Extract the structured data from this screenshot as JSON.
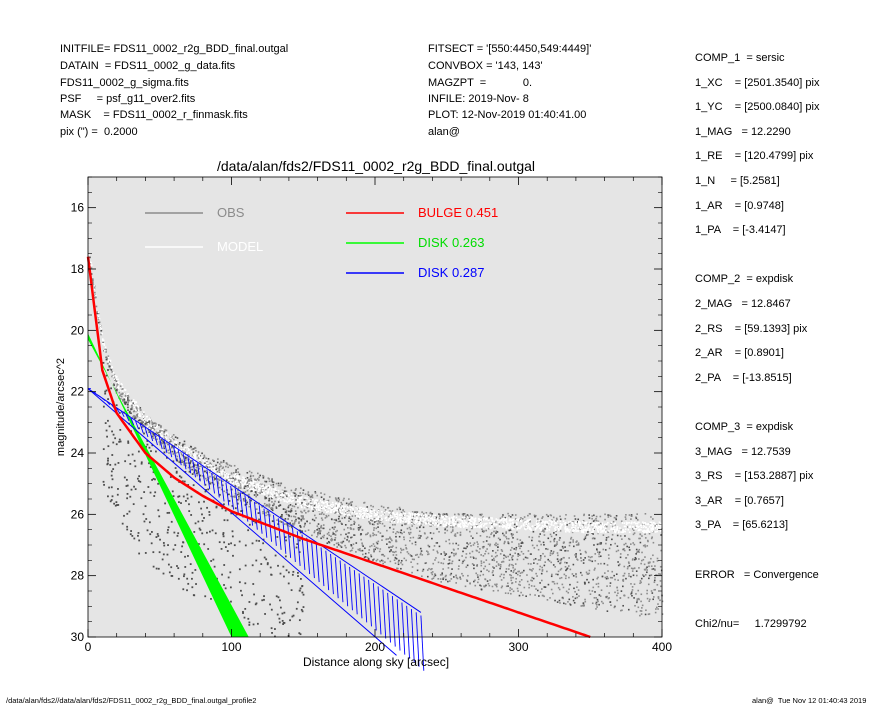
{
  "header_left": [
    "INITFILE= FDS11_0002_r2g_BDD_final.outgal",
    "DATAIN  = FDS11_0002_g_data.fits",
    "FDS11_0002_g_sigma.fits",
    "PSF     = psf_g11_over2.fits",
    "MASK    = FDS11_0002_r_finmask.fits",
    "pix (\") =  0.2000"
  ],
  "header_mid": [
    "FITSECT = '[550:4450,549:4449]'",
    "CONVBOX = '143, 143'",
    "MAGZPT  =            0.",
    "INFILE: 2019-Nov- 8",
    "PLOT: 12-Nov-2019 01:40:41.00",
    "alan@"
  ],
  "params": [
    "COMP_1  = sersic",
    "1_XC    = [2501.3540] pix",
    "1_YC    = [2500.0840] pix",
    "1_MAG   = 12.2290",
    "1_RE    = [120.4799] pix",
    "1_N     = [5.2581]",
    "1_AR    = [0.9748]",
    "1_PA    = [-3.4147]",
    "",
    "COMP_2  = expdisk",
    "2_MAG   = 12.8467",
    "2_RS    = [59.1393] pix",
    "2_AR    = [0.8901]",
    "2_PA    = [-13.8515]",
    "",
    "COMP_3  = expdisk",
    "3_MAG   = 12.7539",
    "3_RS    = [153.2887] pix",
    "3_AR    = [0.7657]",
    "3_PA    = [65.6213]",
    "",
    "ERROR   = Convergence",
    "",
    "Chi2/nu=     1.7299792"
  ],
  "footer_left": "/data/alan/fds2//data/alan/fds2/FDS11_0002_r2g_BDD_final.outgal_profile2",
  "footer_right": "alan@  Tue Nov 12 01:40:43 2019",
  "chart_data": {
    "type": "scatter",
    "title": "/data/alan/fds2/FDS11_0002_r2g_BDD_final.outgal",
    "xlabel": "Distance along sky [arcsec]",
    "ylabel": "magnitude/arcsec^2",
    "xlim": [
      0,
      400
    ],
    "ylim": [
      30,
      15
    ],
    "y_inverted": true,
    "xticks": [
      0,
      100,
      200,
      300,
      400
    ],
    "yticks": [
      16,
      18,
      20,
      22,
      24,
      26,
      28,
      30
    ],
    "legend_placement": "top-left",
    "colors": {
      "plot_bg": "#e5e5e5",
      "obs": "#8c8c8c",
      "obs_dark": "#4d4d4d",
      "model": "#ffffff",
      "bulge": "#ff0000",
      "disk1": "#00ff00",
      "disk2": "#0000ff"
    },
    "series": [
      {
        "name": "OBS",
        "kind": "points",
        "x": [
          0,
          10,
          20,
          30,
          40,
          60,
          80,
          100,
          150,
          200,
          250,
          300,
          350,
          400
        ],
        "y": [
          17.5,
          20.5,
          21.9,
          22.5,
          23.0,
          23.8,
          24.4,
          24.9,
          25.9,
          26.6,
          27.1,
          27.3,
          27.5,
          27.7
        ]
      },
      {
        "name": "MODEL",
        "kind": "points",
        "x": [
          0,
          10,
          20,
          30,
          40,
          60,
          80,
          100,
          150,
          200,
          250,
          300,
          350,
          400
        ],
        "y": [
          17.3,
          20.3,
          21.6,
          22.2,
          22.8,
          23.6,
          24.2,
          24.7,
          25.5,
          25.9,
          26.1,
          26.2,
          26.3,
          26.3
        ]
      },
      {
        "name": "BULGE",
        "label_value": "0.451",
        "kind": "line",
        "x": [
          0,
          10,
          20,
          40,
          60,
          80,
          100,
          150,
          200,
          250,
          300,
          350
        ],
        "y": [
          17.6,
          21.3,
          22.7,
          24.0,
          24.8,
          25.4,
          25.9,
          26.8,
          27.6,
          28.4,
          29.2,
          30.0
        ]
      },
      {
        "name": "DISK",
        "label_value": "0.263",
        "kind": "band",
        "x": [
          0,
          100
        ],
        "y_lo": [
          20.1,
          30.0
        ],
        "y_hi": [
          20.3,
          30.6
        ]
      },
      {
        "name": "DISK",
        "label_value": "0.287",
        "kind": "band",
        "x": [
          0,
          230
        ],
        "y_lo": [
          21.9,
          29.5
        ],
        "y_hi": [
          21.9,
          30.9
        ]
      }
    ]
  }
}
